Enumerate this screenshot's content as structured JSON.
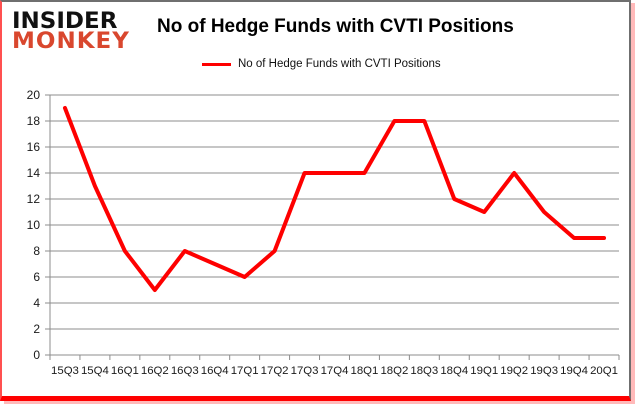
{
  "brand": {
    "line1": "INSIDER",
    "line2": "MONKEY"
  },
  "title": "No of Hedge Funds with CVTI Positions",
  "legend": {
    "label": "No of Hedge Funds with CVTI Positions"
  },
  "colors": {
    "line": "#fe0000",
    "brand_black": "#111111",
    "brand_red": "#d9472e",
    "grid": "#8c8c8c",
    "axis_text": "#1a1a1a"
  },
  "chart_data": {
    "type": "line",
    "title": "No of Hedge Funds with CVTI Positions",
    "categories": [
      "15Q3",
      "15Q4",
      "16Q1",
      "16Q2",
      "16Q3",
      "16Q4",
      "17Q1",
      "17Q2",
      "17Q3",
      "17Q4",
      "18Q1",
      "18Q2",
      "18Q3",
      "18Q4",
      "19Q1",
      "19Q2",
      "19Q3",
      "19Q4",
      "20Q1"
    ],
    "series": [
      {
        "name": "No of Hedge Funds with CVTI Positions",
        "values": [
          19,
          13,
          8,
          5,
          8,
          7,
          6,
          8,
          14,
          14,
          14,
          18,
          18,
          12,
          11,
          14,
          11,
          9,
          9
        ]
      }
    ],
    "xlabel": "",
    "ylabel": "",
    "ylim": [
      0,
      20
    ],
    "ytick_step": 2,
    "grid": true,
    "legend_position": "top-center"
  }
}
